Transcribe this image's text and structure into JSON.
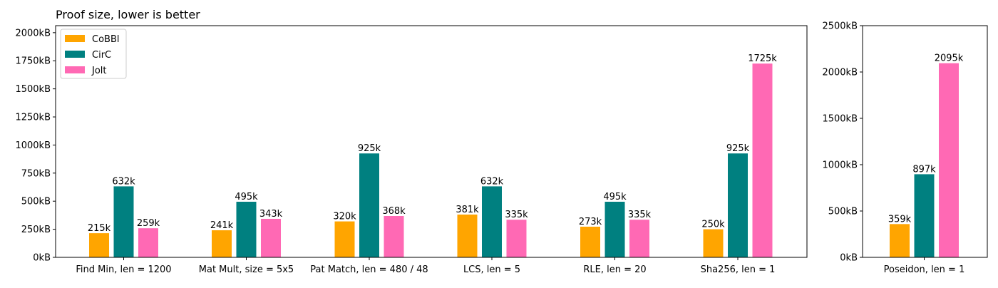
{
  "chart_data": [
    {
      "type": "bar",
      "title": "Proof size, lower is better",
      "xlabel": "",
      "ylabel": "",
      "ylim": [
        0,
        2062.5
      ],
      "yticks": [
        "0kB",
        "250kB",
        "500kB",
        "750kB",
        "1000kB",
        "1250kB",
        "1500kB",
        "1750kB",
        "2000kB"
      ],
      "categories": [
        "Find Min, len = 1200",
        "Mat Mult, size = 5x5",
        "Pat Match, len = 480 / 48",
        "LCS, len = 5",
        "RLE, len = 20",
        "Sha256, len = 1"
      ],
      "series": [
        {
          "name": "CoBBl",
          "color": "#ffa500",
          "values": [
            215,
            241,
            320,
            381,
            273,
            250
          ],
          "labels": [
            "215k",
            "241k",
            "320k",
            "381k",
            "273k",
            "250k"
          ]
        },
        {
          "name": "CirC",
          "color": "#008080",
          "values": [
            632,
            495,
            925,
            632,
            495,
            925
          ],
          "labels": [
            "632k",
            "495k",
            "925k",
            "632k",
            "495k",
            "925k"
          ]
        },
        {
          "name": "Jolt",
          "color": "#ff69b4",
          "values": [
            259,
            343,
            368,
            335,
            335,
            1725
          ],
          "labels": [
            "259k",
            "343k",
            "368k",
            "335k",
            "335k",
            "1725k"
          ]
        }
      ],
      "legend_position": "top-left",
      "grid": false
    },
    {
      "type": "bar",
      "title": "",
      "xlabel": "",
      "ylabel": "",
      "ylim": [
        0,
        2500
      ],
      "yticks": [
        "0kB",
        "500kB",
        "1000kB",
        "1500kB",
        "2000kB",
        "2500kB"
      ],
      "categories": [
        "Poseidon, len = 1"
      ],
      "series": [
        {
          "name": "CoBBl",
          "color": "#ffa500",
          "values": [
            359
          ],
          "labels": [
            "359k"
          ]
        },
        {
          "name": "CirC",
          "color": "#008080",
          "values": [
            897
          ],
          "labels": [
            "897k"
          ]
        },
        {
          "name": "Jolt",
          "color": "#ff69b4",
          "values": [
            2095
          ],
          "labels": [
            "2095k"
          ]
        }
      ],
      "grid": false
    }
  ]
}
